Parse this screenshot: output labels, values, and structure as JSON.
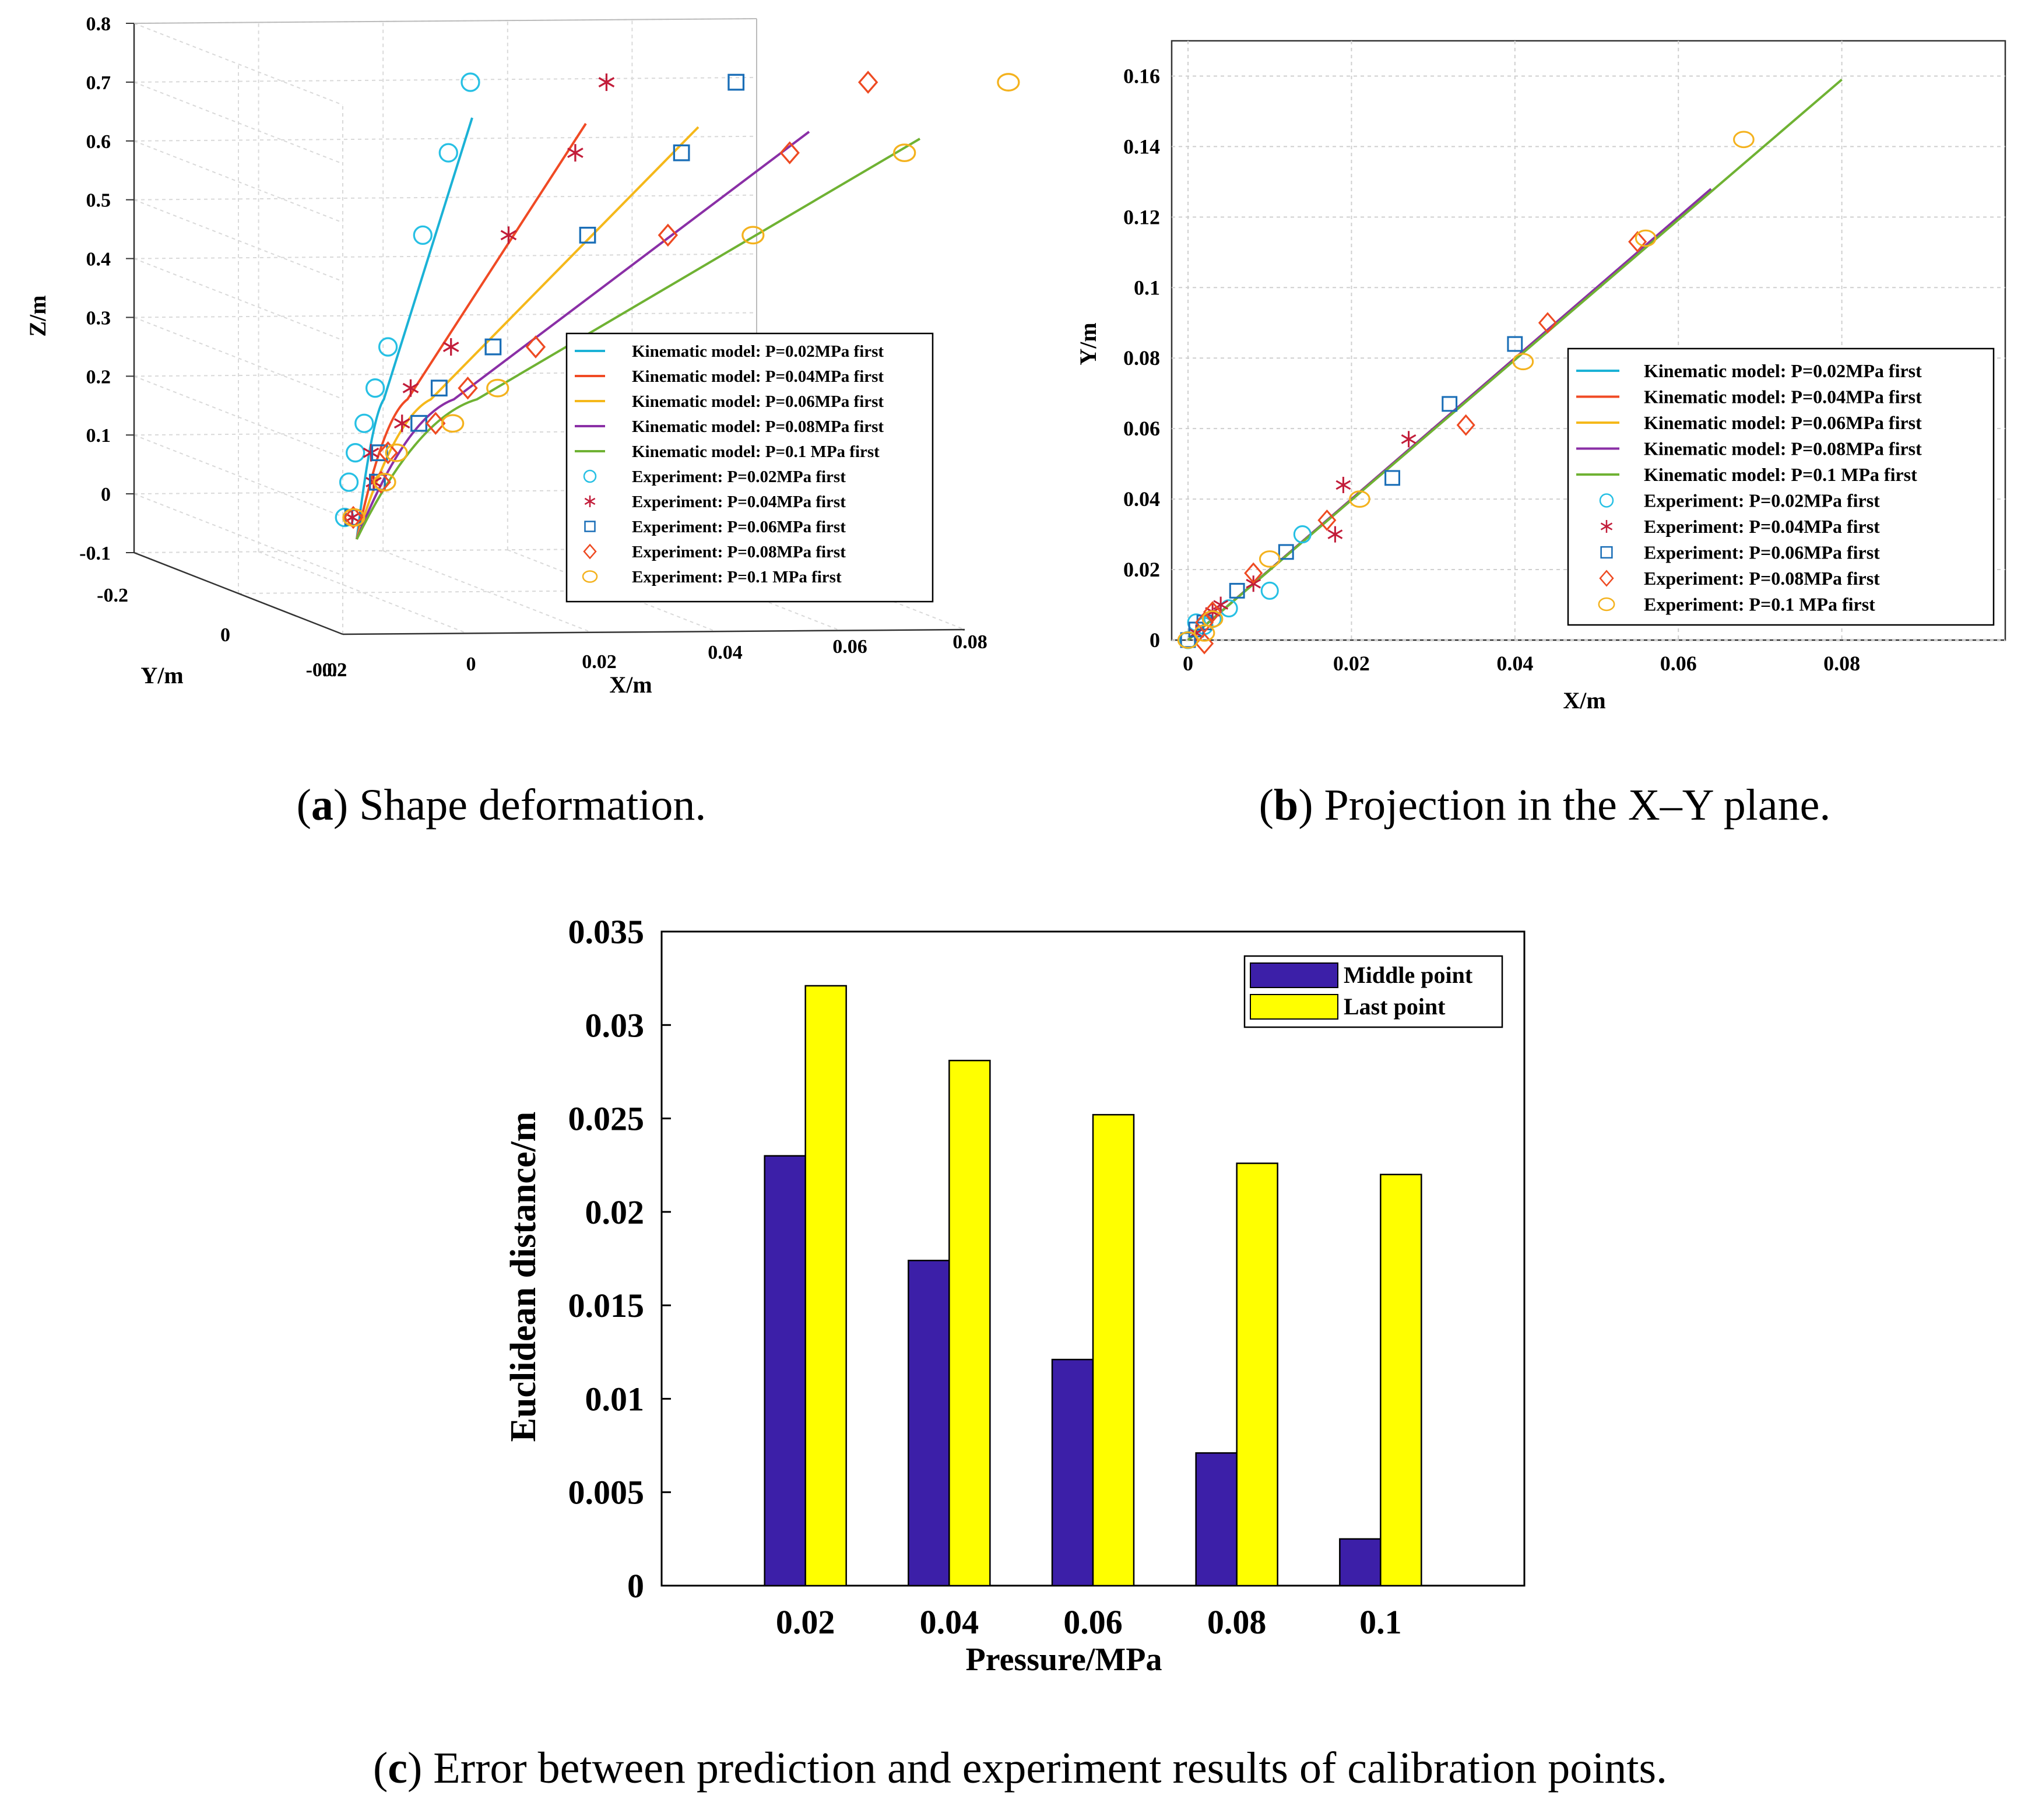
{
  "colors": {
    "p002": "#1bb2d6",
    "p004": "#f04a24",
    "p006": "#f5b81a",
    "p008": "#8a2fa6",
    "p01": "#6fb233",
    "exp002": "#27c0e4",
    "exp004": "#c21d3a",
    "exp006": "#1a6eb7",
    "exp008": "#ee4a22",
    "exp01": "#f4b21e",
    "bar_middle": "#3c1fa8",
    "bar_last": "#ffff00"
  },
  "captions": {
    "a_label": "a",
    "a_text": ") Shape deformation.",
    "b_label": "b",
    "b_text": ") Projection in the X–Y plane.",
    "c_label": "c",
    "c_text": ") Error between prediction and experiment results of calibration points."
  },
  "chart_data": [
    {
      "id": "a",
      "type": "line",
      "title": "Shape deformation",
      "xlabel": "X/m",
      "ylabel": "Y/m",
      "zlabel": "Z/m",
      "z_ticks": [
        "0.8",
        "0.7",
        "0.6",
        "0.5",
        "0.4",
        "0.3",
        "0.2",
        "0.1",
        "0",
        "-0.1"
      ],
      "x_ticks": [
        "-0.02",
        "0",
        "0.02",
        "0.04",
        "0.06",
        "0.08"
      ],
      "y_ticks": [
        "-0.2",
        "0",
        "0.2"
      ],
      "legend": [
        {
          "label": "Kinematic model: P=0.02MPa first",
          "marker": "line",
          "color_key": "p002"
        },
        {
          "label": "Kinematic model: P=0.04MPa first",
          "marker": "line",
          "color_key": "p004"
        },
        {
          "label": "Kinematic model: P=0.06MPa first",
          "marker": "line",
          "color_key": "p006"
        },
        {
          "label": "Kinematic model: P=0.08MPa first",
          "marker": "line",
          "color_key": "p008"
        },
        {
          "label": "Kinematic model: P=0.1 MPa first",
          "marker": "line",
          "color_key": "p01"
        },
        {
          "label": "Experiment: P=0.02MPa first",
          "marker": "circle",
          "color_key": "exp002"
        },
        {
          "label": "Experiment: P=0.04MPa first",
          "marker": "star",
          "color_key": "exp004"
        },
        {
          "label": "Experiment: P=0.06MPa first",
          "marker": "square",
          "color_key": "exp006"
        },
        {
          "label": "Experiment: P=0.08MPa first",
          "marker": "diamond",
          "color_key": "exp008"
        },
        {
          "label": "Experiment: P=0.1 MPa first",
          "marker": "ellipse",
          "color_key": "exp01"
        }
      ],
      "series": [
        {
          "name": "P=0.02MPa",
          "x_end": 0.016,
          "z": [
            -0.06,
            0.0,
            0.05,
            0.1,
            0.16,
            0.23,
            0.42,
            0.56,
            0.68
          ]
        },
        {
          "name": "P=0.04MPa",
          "x_end": 0.032,
          "z": [
            -0.06,
            0.0,
            0.05,
            0.1,
            0.16,
            0.23,
            0.42,
            0.56,
            0.68
          ]
        },
        {
          "name": "P=0.06MPa",
          "x_end": 0.048,
          "z": [
            -0.06,
            0.0,
            0.05,
            0.1,
            0.16,
            0.23,
            0.42,
            0.56,
            0.68
          ]
        },
        {
          "name": "P=0.08MPa",
          "x_end": 0.064,
          "z": [
            -0.06,
            0.0,
            0.05,
            0.1,
            0.16,
            0.23,
            0.42,
            0.56,
            0.68
          ]
        },
        {
          "name": "P=0.1MPa",
          "x_end": 0.08,
          "z": [
            -0.06,
            0.0,
            0.05,
            0.1,
            0.16,
            0.23,
            0.42,
            0.56,
            0.68
          ]
        }
      ]
    },
    {
      "id": "b",
      "type": "line",
      "title": "Projection in the X–Y plane",
      "xlabel": "X/m",
      "ylabel": "Y/m",
      "xlim": [
        -0.002,
        0.1
      ],
      "ylim": [
        0,
        0.17
      ],
      "x_ticks": [
        0,
        0.02,
        0.04,
        0.06,
        0.08
      ],
      "x_tick_labels": [
        "0",
        "0.02",
        "0.04",
        "0.06",
        "0.08"
      ],
      "y_ticks": [
        0,
        0.02,
        0.04,
        0.06,
        0.08,
        0.1,
        0.12,
        0.14,
        0.16
      ],
      "y_tick_labels": [
        "0",
        "0.02",
        "0.04",
        "0.06",
        "0.08",
        "0.1",
        "0.12",
        "0.14",
        "0.16"
      ],
      "legend": [
        {
          "label": "Kinematic model: P=0.02MPa first",
          "marker": "line",
          "color_key": "p002"
        },
        {
          "label": "Kinematic model: P=0.04MPa first",
          "marker": "line",
          "color_key": "p004"
        },
        {
          "label": "Kinematic model: P=0.06MPa first",
          "marker": "line",
          "color_key": "p006"
        },
        {
          "label": "Kinematic model: P=0.08MPa first",
          "marker": "line",
          "color_key": "p008"
        },
        {
          "label": "Kinematic model: P=0.1 MPa first",
          "marker": "line",
          "color_key": "p01"
        },
        {
          "label": "Experiment: P=0.02MPa first",
          "marker": "circle",
          "color_key": "exp002"
        },
        {
          "label": "Experiment: P=0.04MPa first",
          "marker": "star",
          "color_key": "exp004"
        },
        {
          "label": "Experiment: P=0.06MPa first",
          "marker": "square",
          "color_key": "exp006"
        },
        {
          "label": "Experiment: P=0.08MPa first",
          "marker": "diamond",
          "color_key": "exp008"
        },
        {
          "label": "Experiment: P=0.1 MPa first",
          "marker": "ellipse",
          "color_key": "exp01"
        }
      ],
      "model_lines": [
        {
          "name": "P=0.02MPa",
          "color_key": "p002",
          "x": [
            0,
            0.016
          ],
          "y": [
            0,
            0.032
          ]
        },
        {
          "name": "P=0.04MPa",
          "color_key": "p004",
          "x": [
            0,
            0.032
          ],
          "y": [
            0,
            0.064
          ]
        },
        {
          "name": "P=0.06MPa",
          "color_key": "p006",
          "x": [
            0,
            0.048
          ],
          "y": [
            0,
            0.096
          ]
        },
        {
          "name": "P=0.08MPa",
          "color_key": "p008",
          "x": [
            0,
            0.064
          ],
          "y": [
            0,
            0.128
          ]
        },
        {
          "name": "P=0.1MPa",
          "color_key": "p01",
          "x": [
            0,
            0.08
          ],
          "y": [
            0,
            0.159
          ]
        }
      ],
      "experiments": [
        {
          "name": "P=0.02MPa",
          "marker": "circle",
          "color_key": "exp002",
          "points": [
            [
              0,
              0
            ],
            [
              0.001,
              0.005
            ],
            [
              0.002,
              0.004
            ],
            [
              0.003,
              0.006
            ],
            [
              0.005,
              0.009
            ],
            [
              0.01,
              0.014
            ],
            [
              0.014,
              0.03
            ]
          ]
        },
        {
          "name": "P=0.04MPa",
          "marker": "star",
          "color_key": "exp004",
          "points": [
            [
              0.001,
              0.002
            ],
            [
              0.003,
              0.008
            ],
            [
              0.004,
              0.01
            ],
            [
              0.008,
              0.016
            ],
            [
              0.018,
              0.03
            ],
            [
              0.019,
              0.044
            ],
            [
              0.027,
              0.057
            ]
          ]
        },
        {
          "name": "P=0.06MPa",
          "marker": "square",
          "color_key": "exp006",
          "points": [
            [
              0,
              0
            ],
            [
              0.001,
              0.003
            ],
            [
              0.002,
              0.005
            ],
            [
              0.006,
              0.014
            ],
            [
              0.012,
              0.025
            ],
            [
              0.025,
              0.046
            ],
            [
              0.032,
              0.067
            ],
            [
              0.04,
              0.084
            ]
          ]
        },
        {
          "name": "P=0.08MPa",
          "marker": "diamond",
          "color_key": "exp008",
          "points": [
            [
              0.002,
              -0.001
            ],
            [
              0.002,
              0.005
            ],
            [
              0.003,
              0.008
            ],
            [
              0.008,
              0.019
            ],
            [
              0.017,
              0.034
            ],
            [
              0.034,
              0.061
            ],
            [
              0.044,
              0.09
            ],
            [
              0.055,
              0.113
            ]
          ]
        },
        {
          "name": "P=0.1MPa",
          "marker": "ellipse",
          "color_key": "exp01",
          "points": [
            [
              0,
              0
            ],
            [
              0.002,
              0.002
            ],
            [
              0.003,
              0.006
            ],
            [
              0.01,
              0.023
            ],
            [
              0.021,
              0.04
            ],
            [
              0.041,
              0.079
            ],
            [
              0.056,
              0.114
            ],
            [
              0.068,
              0.142
            ]
          ]
        }
      ]
    },
    {
      "id": "c",
      "type": "bar",
      "title": "Error between prediction and experiment results of calibration points",
      "xlabel": "Pressure/MPa",
      "ylabel": "Euclidean distance/m",
      "categories": [
        "0.02",
        "0.04",
        "0.06",
        "0.08",
        "0.1"
      ],
      "ylim": [
        0,
        0.035
      ],
      "y_ticks": [
        0,
        0.005,
        0.01,
        0.015,
        0.02,
        0.025,
        0.03,
        0.035
      ],
      "y_tick_labels": [
        "0",
        "0.005",
        "0.01",
        "0.015",
        "0.02",
        "0.025",
        "0.03",
        "0.035"
      ],
      "series": [
        {
          "name": "Middle point",
          "color_key": "bar_middle",
          "values": [
            0.023,
            0.0174,
            0.0121,
            0.0071,
            0.0025
          ]
        },
        {
          "name": "Last point",
          "color_key": "bar_last",
          "values": [
            0.0321,
            0.0281,
            0.0252,
            0.0226,
            0.022
          ]
        }
      ]
    }
  ]
}
